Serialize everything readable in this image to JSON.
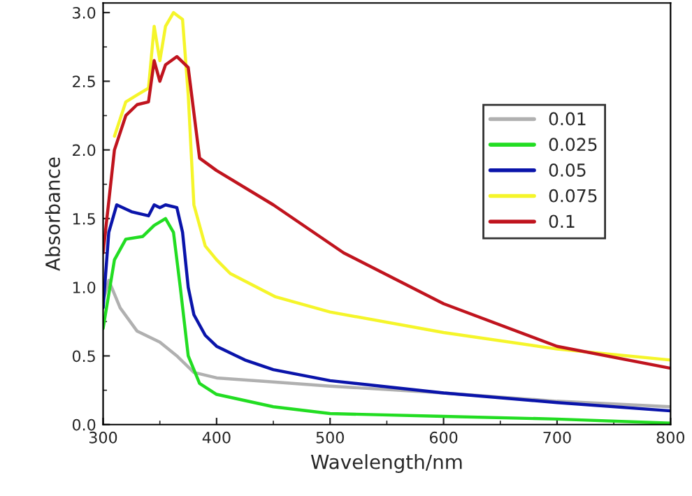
{
  "chart_data": {
    "type": "line",
    "xlabel": "Wavelength/nm",
    "ylabel": "Absorbance",
    "xlim": [
      300,
      800
    ],
    "ylim": [
      0,
      3.07
    ],
    "xticks": [
      300,
      400,
      500,
      600,
      700,
      800
    ],
    "yticks": [
      {
        "value": 0,
        "label": "0.0"
      },
      0.5,
      {
        "value": 1,
        "label": "1.0"
      },
      1.5,
      {
        "value": 2,
        "label": "2.0"
      },
      2.5,
      {
        "value": 3,
        "label": "3.0"
      }
    ],
    "grid": false,
    "legend": "right",
    "line_style": "solid",
    "marker": "none",
    "series": [
      {
        "name": "0.01",
        "color": "#b0b0b0",
        "x": [
          300,
          305,
          315,
          330,
          350,
          365,
          380,
          400,
          450,
          500,
          600,
          700,
          800
        ],
        "values": [
          0.9,
          1.05,
          0.85,
          0.68,
          0.6,
          0.5,
          0.38,
          0.34,
          0.31,
          0.28,
          0.23,
          0.17,
          0.13
        ]
      },
      {
        "name": "0.025",
        "color": "#22dd22",
        "x": [
          300,
          310,
          320,
          335,
          345,
          355,
          362,
          368,
          375,
          385,
          400,
          450,
          500,
          600,
          700,
          800
        ],
        "values": [
          0.7,
          1.2,
          1.35,
          1.37,
          1.45,
          1.5,
          1.4,
          1.0,
          0.5,
          0.3,
          0.22,
          0.13,
          0.08,
          0.06,
          0.04,
          0.01
        ]
      },
      {
        "name": "0.05",
        "color": "#0a14aa",
        "x": [
          300,
          305,
          312,
          325,
          340,
          345,
          350,
          355,
          365,
          370,
          375,
          380,
          390,
          400,
          425,
          450,
          500,
          600,
          700,
          800
        ],
        "values": [
          0.85,
          1.4,
          1.6,
          1.55,
          1.52,
          1.6,
          1.58,
          1.6,
          1.58,
          1.4,
          1.0,
          0.8,
          0.65,
          0.57,
          0.47,
          0.4,
          0.32,
          0.23,
          0.16,
          0.1
        ]
      },
      {
        "name": "0.075",
        "color": "#f5f52a",
        "x": [
          310,
          320,
          330,
          340,
          345,
          350,
          355,
          362,
          370,
          375,
          380,
          390,
          400,
          412,
          452,
          500,
          600,
          700,
          800
        ],
        "values": [
          2.1,
          2.35,
          2.4,
          2.45,
          2.9,
          2.65,
          2.9,
          3.0,
          2.95,
          2.4,
          1.6,
          1.3,
          1.2,
          1.1,
          0.93,
          0.82,
          0.67,
          0.55,
          0.47
        ]
      },
      {
        "name": "0.1",
        "color": "#c0141e",
        "x": [
          300,
          310,
          320,
          330,
          340,
          345,
          350,
          355,
          365,
          375,
          385,
          400,
          450,
          512,
          600,
          700,
          800
        ],
        "values": [
          1.25,
          2.0,
          2.25,
          2.33,
          2.35,
          2.65,
          2.5,
          2.62,
          2.68,
          2.6,
          1.94,
          1.85,
          1.6,
          1.25,
          0.88,
          0.57,
          0.41
        ]
      }
    ]
  }
}
